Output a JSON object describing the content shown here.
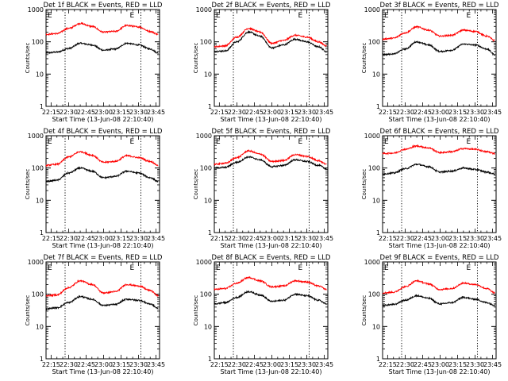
{
  "figure": {
    "xlabel": "Start Time (13-Jun-08 22:10:40)",
    "ylabel": "Counts/sec",
    "x_ticks": [
      "22:15",
      "22:30",
      "22:45",
      "23:00",
      "23:15",
      "23:30",
      "23:45"
    ],
    "y_ticks": [
      "1",
      "10",
      "100",
      "1000"
    ],
    "marker_letters": [
      "E",
      "E"
    ],
    "colors": {
      "events": "#000000",
      "lld": "#ff0000"
    }
  },
  "chart_data": [
    {
      "type": "line",
      "title": "Det 1f BLACK = Events, RED = LLD",
      "xlabel": "Start Time (13-Jun-08 22:10:40)",
      "ylabel": "Counts/sec",
      "y_scale": "log",
      "ylim": [
        1,
        1000
      ],
      "xlim": [
        "22:10:40",
        "23:48"
      ],
      "vlines": [
        "22:27",
        "23:32"
      ],
      "series": [
        {
          "name": "Events",
          "color": "#000000",
          "x": [
            "22:10",
            "22:20",
            "22:30",
            "22:40",
            "22:50",
            "23:00",
            "23:10",
            "23:20",
            "23:30",
            "23:40",
            "23:47"
          ],
          "values": [
            45,
            48,
            62,
            90,
            80,
            55,
            60,
            90,
            80,
            60,
            45
          ]
        },
        {
          "name": "LLD",
          "color": "#ff0000",
          "x": [
            "22:10",
            "22:20",
            "22:30",
            "22:40",
            "22:50",
            "23:00",
            "23:10",
            "23:20",
            "23:30",
            "23:40",
            "23:47"
          ],
          "values": [
            170,
            180,
            260,
            370,
            300,
            200,
            210,
            320,
            290,
            210,
            170
          ]
        }
      ]
    },
    {
      "type": "line",
      "title": "Det 2f BLACK = Events, RED = LLD",
      "xlabel": "Start Time (13-Jun-08 22:10:40)",
      "ylabel": "Counts/sec",
      "y_scale": "log",
      "ylim": [
        1,
        1000
      ],
      "xlim": [
        "22:10:40",
        "23:48"
      ],
      "vlines": [
        "22:27",
        "23:32"
      ],
      "series": [
        {
          "name": "Events",
          "color": "#000000",
          "x": [
            "22:10",
            "22:20",
            "22:30",
            "22:40",
            "22:50",
            "23:00",
            "23:10",
            "23:20",
            "23:30",
            "23:40",
            "23:47"
          ],
          "values": [
            50,
            52,
            100,
            200,
            150,
            65,
            80,
            120,
            100,
            70,
            50
          ]
        },
        {
          "name": "LLD",
          "color": "#ff0000",
          "x": [
            "22:10",
            "22:20",
            "22:30",
            "22:40",
            "22:50",
            "23:00",
            "23:10",
            "23:20",
            "23:30",
            "23:40",
            "23:47"
          ],
          "values": [
            70,
            75,
            140,
            260,
            200,
            90,
            110,
            160,
            140,
            100,
            75
          ]
        }
      ]
    },
    {
      "type": "line",
      "title": "Det 3f BLACK = Events, RED = LLD",
      "xlabel": "Start Time (13-Jun-08 22:10:40)",
      "ylabel": "Counts/sec",
      "y_scale": "log",
      "ylim": [
        1,
        1000
      ],
      "xlim": [
        "22:10:40",
        "23:48"
      ],
      "vlines": [
        "22:27",
        "23:32"
      ],
      "series": [
        {
          "name": "Events",
          "color": "#000000",
          "x": [
            "22:10",
            "22:20",
            "22:30",
            "22:40",
            "22:50",
            "23:00",
            "23:10",
            "23:20",
            "23:30",
            "23:40",
            "23:47"
          ],
          "values": [
            40,
            42,
            60,
            100,
            80,
            50,
            55,
            85,
            80,
            60,
            40
          ]
        },
        {
          "name": "LLD",
          "color": "#ff0000",
          "x": [
            "22:10",
            "22:20",
            "22:30",
            "22:40",
            "22:50",
            "23:00",
            "23:10",
            "23:20",
            "23:30",
            "23:40",
            "23:47"
          ],
          "values": [
            120,
            130,
            190,
            290,
            230,
            150,
            160,
            230,
            210,
            150,
            110
          ]
        }
      ]
    },
    {
      "type": "line",
      "title": "Det 4f BLACK = Events, RED = LLD",
      "xlabel": "Start Time (13-Jun-08 22:10:40)",
      "ylabel": "Counts/sec",
      "y_scale": "log",
      "ylim": [
        1,
        1000
      ],
      "xlim": [
        "22:10:40",
        "23:48"
      ],
      "vlines": [
        "22:27",
        "23:32"
      ],
      "series": [
        {
          "name": "Events",
          "color": "#000000",
          "x": [
            "22:10",
            "22:20",
            "22:30",
            "22:40",
            "22:50",
            "23:00",
            "23:10",
            "23:20",
            "23:30",
            "23:40",
            "23:47"
          ],
          "values": [
            38,
            42,
            70,
            100,
            80,
            50,
            55,
            80,
            70,
            50,
            38
          ]
        },
        {
          "name": "LLD",
          "color": "#ff0000",
          "x": [
            "22:10",
            "22:20",
            "22:30",
            "22:40",
            "22:50",
            "23:00",
            "23:10",
            "23:20",
            "23:30",
            "23:40",
            "23:47"
          ],
          "values": [
            120,
            130,
            220,
            320,
            250,
            150,
            160,
            240,
            210,
            160,
            120
          ]
        }
      ]
    },
    {
      "type": "line",
      "title": "Det 5f BLACK = Events, RED = LLD",
      "xlabel": "Start Time (13-Jun-08 22:10:40)",
      "ylabel": "Counts/sec",
      "y_scale": "log",
      "ylim": [
        1,
        1000
      ],
      "xlim": [
        "22:10:40",
        "23:48"
      ],
      "vlines": [
        "22:27",
        "23:32"
      ],
      "series": [
        {
          "name": "Events",
          "color": "#000000",
          "x": [
            "22:10",
            "22:20",
            "22:30",
            "22:40",
            "22:50",
            "23:00",
            "23:10",
            "23:20",
            "23:30",
            "23:40",
            "23:47"
          ],
          "values": [
            100,
            105,
            150,
            220,
            180,
            110,
            120,
            180,
            160,
            120,
            95
          ]
        },
        {
          "name": "LLD",
          "color": "#ff0000",
          "x": [
            "22:10",
            "22:20",
            "22:30",
            "22:40",
            "22:50",
            "23:00",
            "23:10",
            "23:20",
            "23:30",
            "23:40",
            "23:47"
          ],
          "values": [
            130,
            140,
            210,
            340,
            270,
            160,
            170,
            260,
            230,
            170,
            130
          ]
        }
      ]
    },
    {
      "type": "line",
      "title": "Det 6f BLACK = Events, RED = LLD",
      "xlabel": "Start Time (13-Jun-08 22:10:40)",
      "ylabel": "Counts/sec",
      "y_scale": "log",
      "ylim": [
        1,
        1000
      ],
      "xlim": [
        "22:10:40",
        "23:48"
      ],
      "vlines": [
        "22:27",
        "23:32"
      ],
      "series": [
        {
          "name": "Events",
          "color": "#000000",
          "x": [
            "22:10",
            "22:20",
            "22:30",
            "22:40",
            "22:50",
            "23:00",
            "23:10",
            "23:20",
            "23:30",
            "23:40",
            "23:47"
          ],
          "values": [
            65,
            70,
            95,
            130,
            110,
            75,
            80,
            100,
            90,
            75,
            65
          ]
        },
        {
          "name": "LLD",
          "color": "#ff0000",
          "x": [
            "22:10",
            "22:20",
            "22:30",
            "22:40",
            "22:50",
            "23:00",
            "23:10",
            "23:20",
            "23:30",
            "23:40",
            "23:47"
          ],
          "values": [
            280,
            290,
            380,
            480,
            420,
            300,
            320,
            400,
            380,
            320,
            280
          ]
        }
      ]
    },
    {
      "type": "line",
      "title": "Det 7f BLACK = Events, RED = LLD",
      "xlabel": "Start Time (13-Jun-08 22:10:40)",
      "ylabel": "Counts/sec",
      "y_scale": "log",
      "ylim": [
        1,
        1000
      ],
      "xlim": [
        "22:10:40",
        "23:48"
      ],
      "vlines": [
        "22:27",
        "23:32"
      ],
      "series": [
        {
          "name": "Events",
          "color": "#000000",
          "x": [
            "22:10",
            "22:20",
            "22:30",
            "22:40",
            "22:50",
            "23:00",
            "23:10",
            "23:20",
            "23:30",
            "23:40",
            "23:47"
          ],
          "values": [
            35,
            38,
            55,
            85,
            70,
            45,
            48,
            70,
            65,
            50,
            36
          ]
        },
        {
          "name": "LLD",
          "color": "#ff0000",
          "x": [
            "22:10",
            "22:20",
            "22:30",
            "22:40",
            "22:50",
            "23:00",
            "23:10",
            "23:20",
            "23:30",
            "23:40",
            "23:47"
          ],
          "values": [
            90,
            95,
            160,
            260,
            200,
            110,
            120,
            200,
            180,
            130,
            90
          ]
        }
      ]
    },
    {
      "type": "line",
      "title": "Det 8f BLACK = Events, RED = LLD",
      "xlabel": "Start Time (13-Jun-08 22:10:40)",
      "ylabel": "Counts/sec",
      "y_scale": "log",
      "ylim": [
        1,
        1000
      ],
      "xlim": [
        "22:10:40",
        "23:48"
      ],
      "vlines": [
        "22:27",
        "23:32"
      ],
      "series": [
        {
          "name": "Events",
          "color": "#000000",
          "x": [
            "22:10",
            "22:20",
            "22:30",
            "22:40",
            "22:50",
            "23:00",
            "23:10",
            "23:20",
            "23:30",
            "23:40",
            "23:47"
          ],
          "values": [
            50,
            55,
            80,
            120,
            95,
            60,
            65,
            100,
            90,
            65,
            50
          ]
        },
        {
          "name": "LLD",
          "color": "#ff0000",
          "x": [
            "22:10",
            "22:20",
            "22:30",
            "22:40",
            "22:50",
            "23:00",
            "23:10",
            "23:20",
            "23:30",
            "23:40",
            "23:47"
          ],
          "values": [
            140,
            150,
            220,
            330,
            260,
            170,
            180,
            260,
            240,
            180,
            140
          ]
        }
      ]
    },
    {
      "type": "line",
      "title": "Det 9f BLACK = Events, RED = LLD",
      "xlabel": "Start Time (13-Jun-08 22:10:40)",
      "ylabel": "Counts/sec",
      "y_scale": "log",
      "ylim": [
        1,
        1000
      ],
      "xlim": [
        "22:10:40",
        "23:48"
      ],
      "vlines": [
        "22:27",
        "23:32"
      ],
      "series": [
        {
          "name": "Events",
          "color": "#000000",
          "x": [
            "22:10",
            "22:20",
            "22:30",
            "22:40",
            "22:50",
            "23:00",
            "23:10",
            "23:20",
            "23:30",
            "23:40",
            "23:47"
          ],
          "values": [
            45,
            48,
            65,
            90,
            75,
            50,
            55,
            80,
            70,
            55,
            45
          ]
        },
        {
          "name": "LLD",
          "color": "#ff0000",
          "x": [
            "22:10",
            "22:20",
            "22:30",
            "22:40",
            "22:50",
            "23:00",
            "23:10",
            "23:20",
            "23:30",
            "23:40",
            "23:47"
          ],
          "values": [
            110,
            115,
            170,
            260,
            210,
            140,
            150,
            220,
            200,
            150,
            110
          ]
        }
      ]
    }
  ]
}
